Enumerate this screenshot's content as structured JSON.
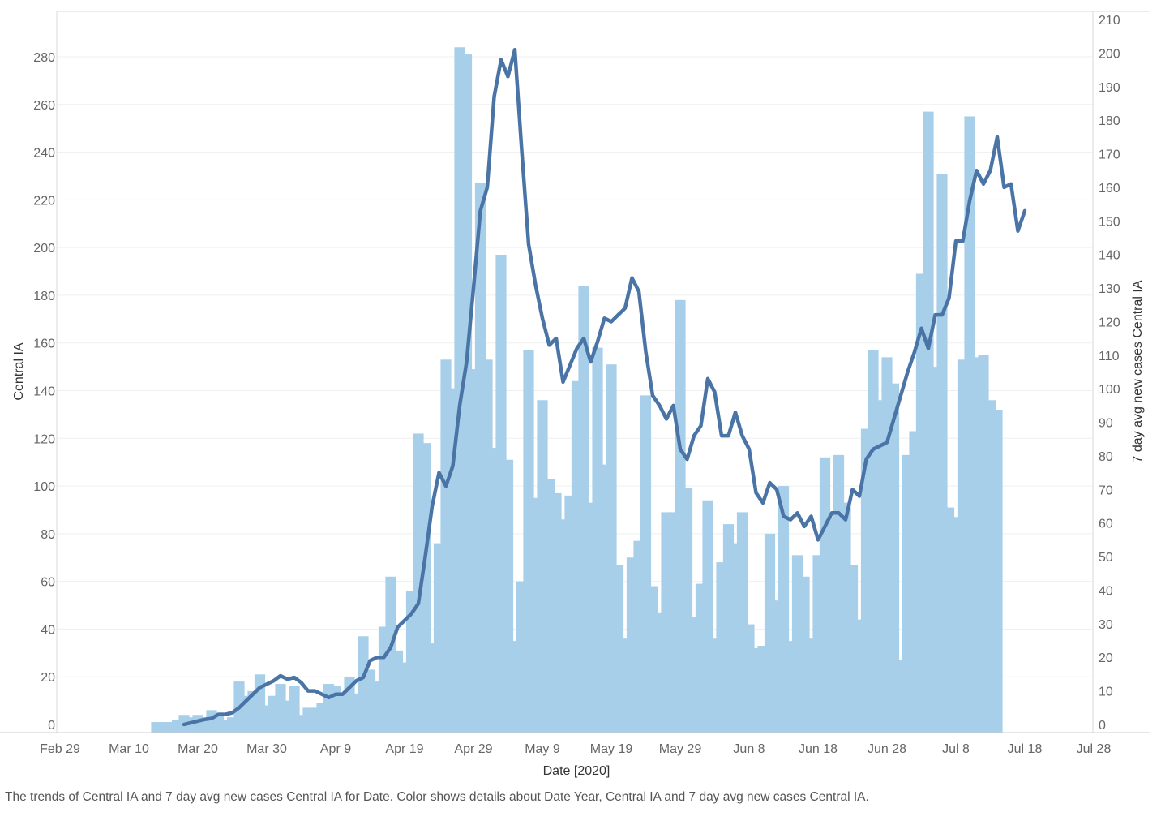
{
  "chart_data": {
    "type": "bar+line",
    "xlabel": "Date [2020]",
    "ylabel_left": "Central IA",
    "ylabel_right": "7 day avg new cases Central IA",
    "ylim_left": [
      0,
      297
    ],
    "ylim_right": [
      0,
      212
    ],
    "yticks_left": [
      0,
      20,
      40,
      60,
      80,
      100,
      120,
      140,
      160,
      180,
      200,
      220,
      240,
      260,
      280
    ],
    "yticks_right": [
      0,
      10,
      20,
      30,
      40,
      50,
      60,
      70,
      80,
      90,
      100,
      110,
      120,
      130,
      140,
      150,
      160,
      170,
      180,
      190,
      200,
      210
    ],
    "xtick_labels": [
      "Feb 29",
      "Mar 10",
      "Mar 20",
      "Mar 30",
      "Apr 9",
      "Apr 19",
      "Apr 29",
      "May 9",
      "May 19",
      "May 29",
      "Jun 8",
      "Jun 18",
      "Jun 28",
      "Jul 8",
      "Jul 18",
      "Jul 28"
    ],
    "start_date": "Mar 14",
    "series": [
      {
        "name": "Central IA",
        "kind": "bar",
        "color": "#a8cfe9",
        "values": [
          1,
          1,
          1,
          2,
          4,
          3,
          4,
          3,
          6,
          5,
          2,
          3,
          18,
          12,
          14,
          21,
          8,
          12,
          17,
          10,
          16,
          4,
          7,
          7,
          9,
          17,
          16,
          13,
          20,
          13,
          37,
          23,
          18,
          41,
          62,
          31,
          26,
          56,
          122,
          118,
          34,
          76,
          153,
          141,
          284,
          281,
          149,
          227,
          153,
          116,
          197,
          111,
          35,
          60,
          157,
          95,
          136,
          103,
          97,
          86,
          96,
          144,
          184,
          93,
          158,
          109,
          151,
          67,
          36,
          70,
          77,
          138,
          58,
          47,
          89,
          89,
          178,
          99,
          45,
          59,
          94,
          36,
          68,
          84,
          76,
          89,
          42,
          32,
          33,
          80,
          52,
          100,
          35,
          71,
          62,
          36,
          71,
          112,
          87,
          113,
          93,
          67,
          44,
          124,
          157,
          136,
          154,
          143,
          27,
          113,
          123,
          189,
          257,
          150,
          231,
          91,
          87,
          153,
          255,
          154,
          155,
          136,
          132
        ]
      },
      {
        "name": "7 day avg new cases Central IA",
        "kind": "line",
        "color": "#4a74a6",
        "start_index": 4,
        "values": [
          0,
          0.5,
          1,
          1.5,
          1.8,
          3,
          3,
          3.5,
          5,
          7,
          9,
          11,
          12,
          13,
          14.5,
          13.5,
          14,
          12.5,
          10,
          10,
          9,
          8,
          9,
          9,
          11,
          13,
          14,
          19,
          20,
          20,
          23,
          29,
          31,
          33,
          36,
          50,
          65,
          75,
          71,
          77,
          95,
          108,
          130,
          153,
          160,
          187,
          198,
          193,
          201,
          171,
          143,
          131,
          121,
          113,
          115,
          102,
          107,
          112,
          115,
          108,
          114,
          121,
          120,
          122,
          124,
          133,
          129,
          111,
          98,
          95,
          91,
          95,
          82,
          79,
          86,
          89,
          103,
          99,
          86,
          86,
          93,
          86,
          82,
          69,
          66,
          72,
          70,
          62,
          61,
          63,
          59,
          62,
          55,
          59,
          63,
          63,
          61,
          70,
          68,
          79,
          82,
          83,
          84,
          91,
          98,
          105,
          111,
          118,
          112,
          122,
          122,
          127,
          144,
          144,
          156,
          165,
          161,
          165,
          175,
          160,
          161,
          147,
          153
        ]
      }
    ]
  },
  "caption": "The trends of Central IA and 7 day avg new cases Central IA for Date.  Color shows details about Date Year, Central IA and 7 day avg new cases Central IA."
}
